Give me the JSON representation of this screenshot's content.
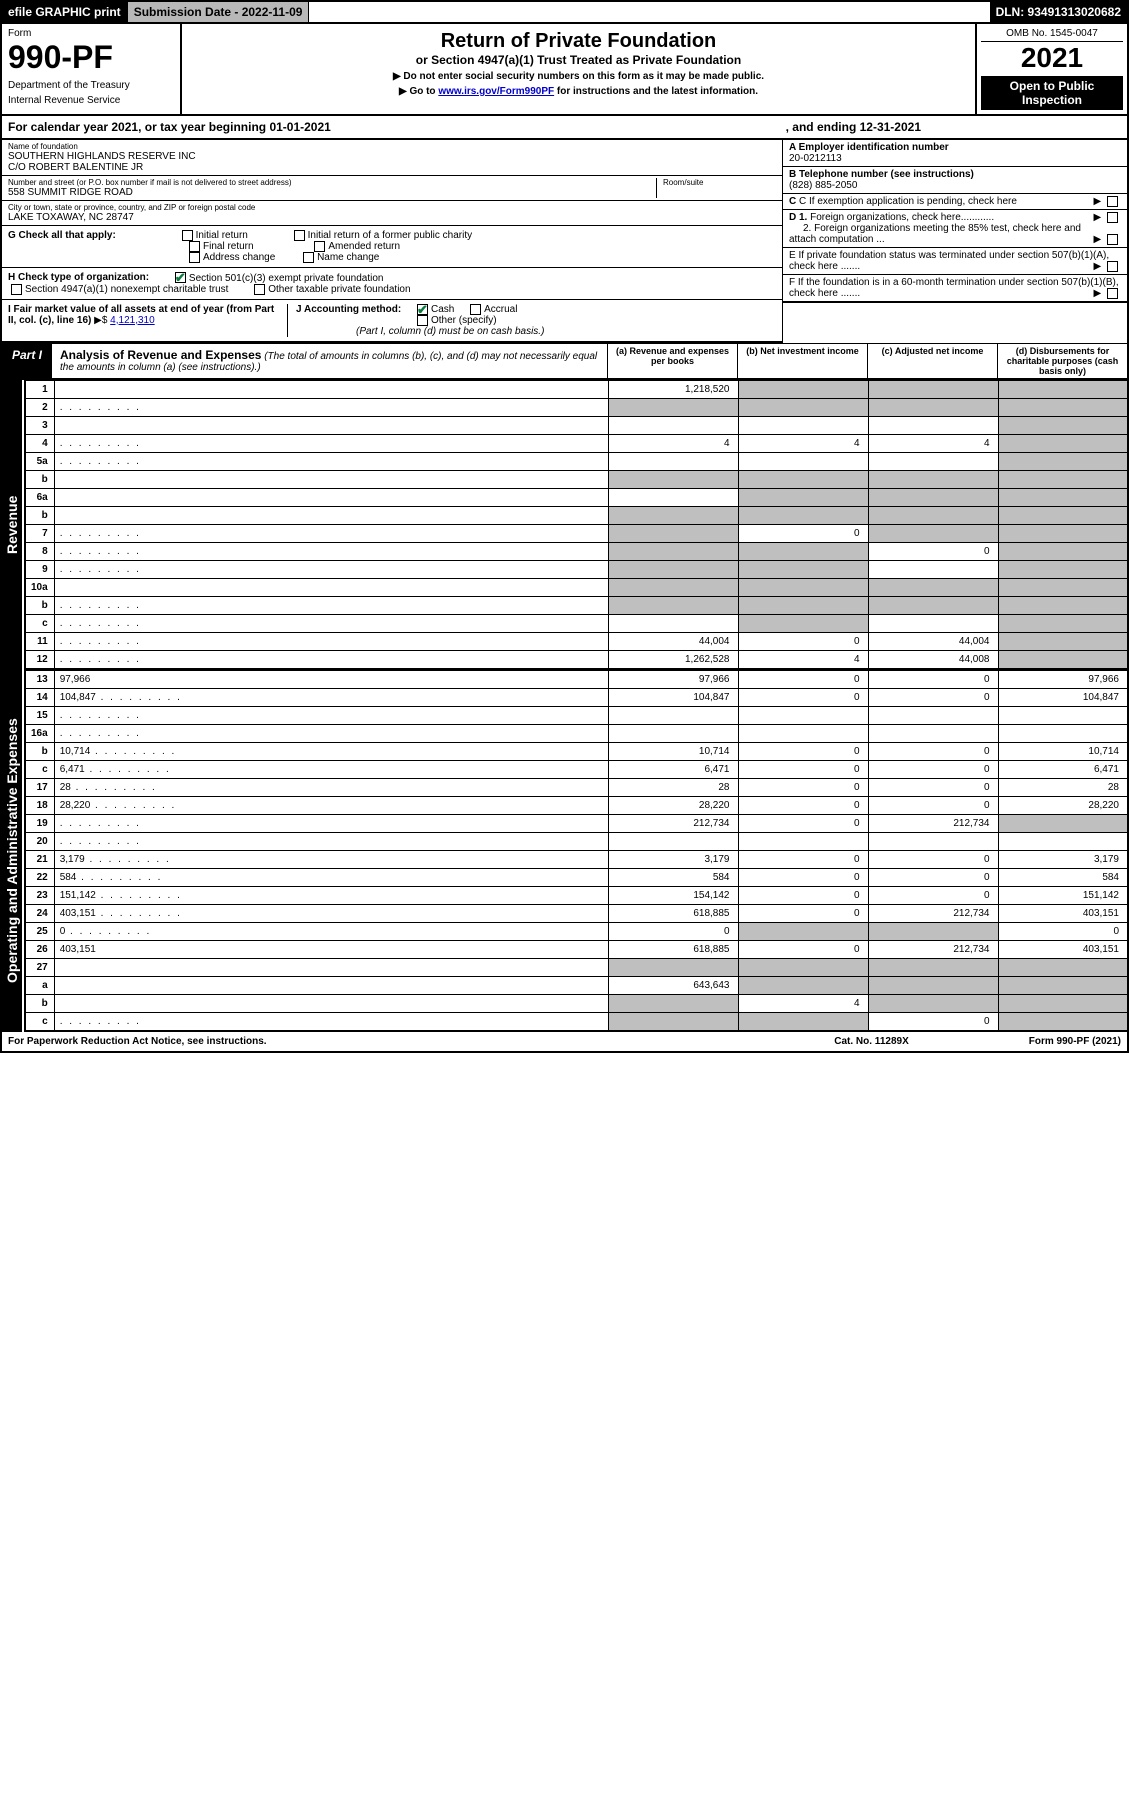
{
  "topbar": {
    "efile": "efile GRAPHIC print",
    "subdate_label": "Submission Date - 2022-11-09",
    "dln": "DLN: 93491313020682"
  },
  "header": {
    "form_word": "Form",
    "form_num": "990-PF",
    "dept": "Department of the Treasury",
    "irs": "Internal Revenue Service",
    "title": "Return of Private Foundation",
    "subtitle": "or Section 4947(a)(1) Trust Treated as Private Foundation",
    "note1": "▶ Do not enter social security numbers on this form as it may be made public.",
    "note2_pre": "▶ Go to ",
    "note2_link": "www.irs.gov/Form990PF",
    "note2_post": " for instructions and the latest information.",
    "omb": "OMB No. 1545-0047",
    "year": "2021",
    "open": "Open to Public Inspection"
  },
  "calyear": {
    "a": "For calendar year 2021, or tax year beginning 01-01-2021",
    "b": ", and ending 12-31-2021"
  },
  "id": {
    "name_lbl": "Name of foundation",
    "name1": "SOUTHERN HIGHLANDS RESERVE INC",
    "name2": "C/O ROBERT BALENTINE JR",
    "addr_lbl": "Number and street (or P.O. box number if mail is not delivered to street address)",
    "addr": "558 SUMMIT RIDGE ROAD",
    "room_lbl": "Room/suite",
    "city_lbl": "City or town, state or province, country, and ZIP or foreign postal code",
    "city": "LAKE TOXAWAY, NC  28747",
    "ein_lbl": "A Employer identification number",
    "ein": "20-0212113",
    "tel_lbl": "B Telephone number (see instructions)",
    "tel": "(828) 885-2050",
    "c": "C If exemption application is pending, check here",
    "d1": "D 1. Foreign organizations, check here............",
    "d2": "2. Foreign organizations meeting the 85% test, check here and attach computation ...",
    "e": "E  If private foundation status was terminated under section 507(b)(1)(A), check here .......",
    "f": "F  If the foundation is in a 60-month termination under section 507(b)(1)(B), check here .......",
    "g_lbl": "G Check all that apply:",
    "g_opts": [
      "Initial return",
      "Final return",
      "Address change",
      "Initial return of a former public charity",
      "Amended return",
      "Name change"
    ],
    "h_lbl": "H Check type of organization:",
    "h1": "Section 501(c)(3) exempt private foundation",
    "h2": "Section 4947(a)(1) nonexempt charitable trust",
    "h3": "Other taxable private foundation",
    "i_lbl": "I Fair market value of all assets at end of year (from Part II, col. (c), line 16)",
    "i_val": "4,121,310",
    "j_lbl": "J Accounting method:",
    "j_cash": "Cash",
    "j_accr": "Accrual",
    "j_other": "Other (specify)",
    "j_note": "(Part I, column (d) must be on cash basis.)"
  },
  "part1": {
    "label": "Part I",
    "title": "Analysis of Revenue and Expenses",
    "title_note": " (The total of amounts in columns (b), (c), and (d) may not necessarily equal the amounts in column (a) (see instructions).)",
    "col_a": "(a)   Revenue and expenses per books",
    "col_b": "(b)   Net investment income",
    "col_c": "(c)   Adjusted net income",
    "col_d": "(d)   Disbursements for charitable purposes (cash basis only)"
  },
  "side_rev": "Revenue",
  "side_exp": "Operating and Administrative Expenses",
  "rows_rev": [
    {
      "n": "1",
      "d": "",
      "a": "1,218,520",
      "b": "",
      "c": "",
      "sb": true,
      "sc": true,
      "sd": true
    },
    {
      "n": "2",
      "d": "",
      "a": "",
      "b": "",
      "c": "",
      "sa": true,
      "sb": true,
      "sc": true,
      "sd": true,
      "dots": true
    },
    {
      "n": "3",
      "d": "",
      "a": "",
      "b": "",
      "c": "",
      "sd": true
    },
    {
      "n": "4",
      "d": "",
      "a": "4",
      "b": "4",
      "c": "4",
      "sd": true,
      "dots": true
    },
    {
      "n": "5a",
      "d": "",
      "a": "",
      "b": "",
      "c": "",
      "sd": true,
      "dots": true
    },
    {
      "n": "b",
      "d": "",
      "a": "",
      "b": "",
      "c": "",
      "sa": true,
      "sb": true,
      "sc": true,
      "sd": true
    },
    {
      "n": "6a",
      "d": "",
      "a": "",
      "b": "",
      "c": "",
      "sb": true,
      "sc": true,
      "sd": true
    },
    {
      "n": "b",
      "d": "",
      "a": "",
      "b": "",
      "c": "",
      "sa": true,
      "sb": true,
      "sc": true,
      "sd": true
    },
    {
      "n": "7",
      "d": "",
      "a": "",
      "b": "0",
      "c": "",
      "sa": true,
      "sc": true,
      "sd": true,
      "dots": true
    },
    {
      "n": "8",
      "d": "",
      "a": "",
      "b": "",
      "c": "0",
      "sa": true,
      "sb": true,
      "sd": true,
      "dots": true
    },
    {
      "n": "9",
      "d": "",
      "a": "",
      "b": "",
      "c": "",
      "sa": true,
      "sb": true,
      "sd": true,
      "dots": true
    },
    {
      "n": "10a",
      "d": "",
      "a": "",
      "b": "",
      "c": "",
      "sa": true,
      "sb": true,
      "sc": true,
      "sd": true
    },
    {
      "n": "b",
      "d": "",
      "a": "",
      "b": "",
      "c": "",
      "sa": true,
      "sb": true,
      "sc": true,
      "sd": true,
      "dots": true
    },
    {
      "n": "c",
      "d": "",
      "a": "",
      "b": "",
      "c": "",
      "sb": true,
      "sd": true,
      "dots": true
    },
    {
      "n": "11",
      "d": "",
      "a": "44,004",
      "b": "0",
      "c": "44,004",
      "sd": true,
      "dots": true
    },
    {
      "n": "12",
      "d": "",
      "a": "1,262,528",
      "b": "4",
      "c": "44,008",
      "sd": true,
      "dots": true,
      "bold": true
    }
  ],
  "rows_exp": [
    {
      "n": "13",
      "d": "97,966",
      "a": "97,966",
      "b": "0",
      "c": "0"
    },
    {
      "n": "14",
      "d": "104,847",
      "a": "104,847",
      "b": "0",
      "c": "0",
      "dots": true
    },
    {
      "n": "15",
      "d": "",
      "a": "",
      "b": "",
      "c": "",
      "dots": true
    },
    {
      "n": "16a",
      "d": "",
      "a": "",
      "b": "",
      "c": "",
      "dots": true
    },
    {
      "n": "b",
      "d": "10,714",
      "a": "10,714",
      "b": "0",
      "c": "0",
      "dots": true
    },
    {
      "n": "c",
      "d": "6,471",
      "a": "6,471",
      "b": "0",
      "c": "0",
      "dots": true
    },
    {
      "n": "17",
      "d": "28",
      "a": "28",
      "b": "0",
      "c": "0",
      "dots": true
    },
    {
      "n": "18",
      "d": "28,220",
      "a": "28,220",
      "b": "0",
      "c": "0",
      "dots": true
    },
    {
      "n": "19",
      "d": "",
      "a": "212,734",
      "b": "0",
      "c": "212,734",
      "sd": true,
      "dots": true
    },
    {
      "n": "20",
      "d": "",
      "a": "",
      "b": "",
      "c": "",
      "dots": true
    },
    {
      "n": "21",
      "d": "3,179",
      "a": "3,179",
      "b": "0",
      "c": "0",
      "dots": true
    },
    {
      "n": "22",
      "d": "584",
      "a": "584",
      "b": "0",
      "c": "0",
      "dots": true
    },
    {
      "n": "23",
      "d": "151,142",
      "a": "154,142",
      "b": "0",
      "c": "0",
      "dots": true
    },
    {
      "n": "24",
      "d": "403,151",
      "a": "618,885",
      "b": "0",
      "c": "212,734",
      "dots": true
    },
    {
      "n": "25",
      "d": "0",
      "a": "0",
      "b": "",
      "c": "",
      "sb": true,
      "sc": true,
      "dots": true
    },
    {
      "n": "26",
      "d": "403,151",
      "a": "618,885",
      "b": "0",
      "c": "212,734"
    },
    {
      "n": "27",
      "d": "",
      "a": "",
      "b": "",
      "c": "",
      "sa": true,
      "sb": true,
      "sc": true,
      "sd": true
    },
    {
      "n": "a",
      "d": "",
      "a": "643,643",
      "b": "",
      "c": "",
      "sb": true,
      "sc": true,
      "sd": true
    },
    {
      "n": "b",
      "d": "",
      "a": "",
      "b": "4",
      "c": "",
      "sa": true,
      "sc": true,
      "sd": true
    },
    {
      "n": "c",
      "d": "",
      "a": "",
      "b": "",
      "c": "0",
      "sa": true,
      "sb": true,
      "sd": true,
      "dots": true
    }
  ],
  "footer": {
    "a": "For Paperwork Reduction Act Notice, see instructions.",
    "b": "Cat. No. 11289X",
    "c": "Form 990-PF (2021)"
  }
}
